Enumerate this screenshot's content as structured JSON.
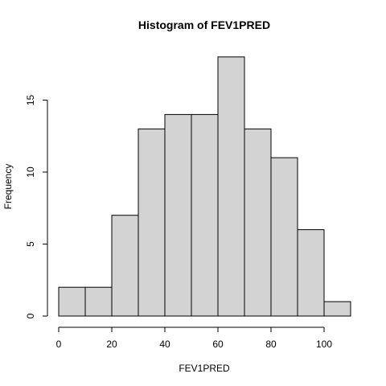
{
  "chart_data": {
    "type": "bar",
    "title": "Histogram of  FEV1PRED",
    "xlabel": "FEV1PRED",
    "ylabel": "Frequency",
    "bins": [
      [
        0,
        10
      ],
      [
        10,
        20
      ],
      [
        20,
        30
      ],
      [
        30,
        40
      ],
      [
        40,
        50
      ],
      [
        50,
        60
      ],
      [
        60,
        70
      ],
      [
        70,
        80
      ],
      [
        80,
        90
      ],
      [
        90,
        100
      ],
      [
        100,
        110
      ]
    ],
    "values": [
      2,
      2,
      7,
      13,
      14,
      14,
      18,
      13,
      11,
      6,
      1
    ],
    "xlim": [
      0,
      110
    ],
    "ylim": [
      0,
      18
    ],
    "x_ticks": [
      0,
      20,
      40,
      60,
      80,
      100
    ],
    "y_ticks": [
      0,
      5,
      10,
      15
    ],
    "grid": false,
    "colors": {
      "bar_fill": "#d3d3d3",
      "bar_stroke": "#000000"
    }
  }
}
